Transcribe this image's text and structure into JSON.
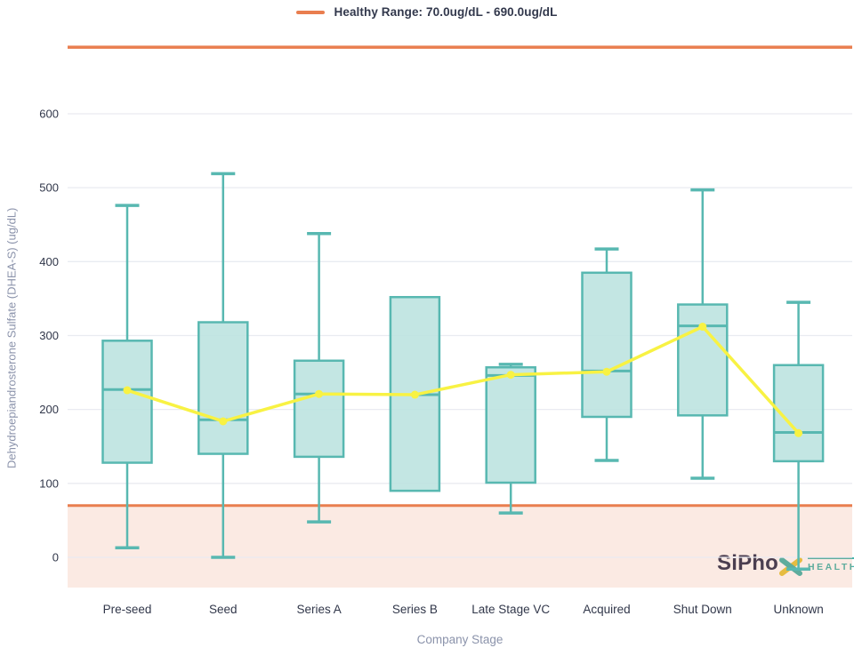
{
  "logo": {
    "brand": "SiPho",
    "x_icon": "brand-x-cross",
    "sub": "HEALTH"
  },
  "colors": {
    "teal_stroke": "#58b8b1",
    "teal_fill": "#bde3e0",
    "yellow": "#f8f243",
    "orange": "#e97e4f",
    "shade": "rgba(233,126,79,0.16)",
    "grid": "#e9ebf1",
    "tick_text": "#31374a",
    "axis_title_text": "#8b93ab",
    "navy": "#2e3350",
    "logo_x_gold": "#e6c93f"
  },
  "chart_data": {
    "type": "boxplot",
    "title": "",
    "xlabel": "Company Stage",
    "ylabel": "Dehydroepiandrosterone Sulfate (DHEA-S) (ug/dL)",
    "categories": [
      "Pre-seed",
      "Seed",
      "Series A",
      "Series B",
      "Late Stage VC",
      "Acquired",
      "Shut Down",
      "Unknown"
    ],
    "yticks": [
      0,
      100,
      200,
      300,
      400,
      500,
      600
    ],
    "ylim": [
      -45,
      700
    ],
    "grid": true,
    "legend_position": "top-center",
    "healthy_range": {
      "low": 70,
      "high": 690,
      "label": "Healthy Range: 70.0ug/dL - 690.0ug/dL"
    },
    "boxes": [
      {
        "category": "Pre-seed",
        "min": 13,
        "q1": 128,
        "median": 227,
        "q3": 293,
        "max": 476,
        "mean": 226
      },
      {
        "category": "Seed",
        "min": 0,
        "q1": 140,
        "median": 186,
        "q3": 318,
        "max": 519,
        "mean": 184
      },
      {
        "category": "Series A",
        "min": 48,
        "q1": 136,
        "median": 221,
        "q3": 266,
        "max": 438,
        "mean": 221
      },
      {
        "category": "Series B",
        "min": 90,
        "q1": 90,
        "median": 220,
        "q3": 352,
        "max": 352,
        "mean": 220
      },
      {
        "category": "Late Stage VC",
        "min": 60,
        "q1": 101,
        "median": 246,
        "q3": 257,
        "max": 261,
        "mean": 247
      },
      {
        "category": "Acquired",
        "min": 131,
        "q1": 190,
        "median": 252,
        "q3": 385,
        "max": 417,
        "mean": 251
      },
      {
        "category": "Shut Down",
        "min": 107,
        "q1": 192,
        "median": 313,
        "q3": 342,
        "max": 497,
        "mean": 312
      },
      {
        "category": "Unknown",
        "min": -16,
        "q1": 130,
        "median": 169,
        "q3": 260,
        "max": 345,
        "mean": 168
      }
    ],
    "mean_series": {
      "name": "mean",
      "values": [
        226,
        184,
        221,
        220,
        247,
        251,
        312,
        168
      ]
    }
  }
}
